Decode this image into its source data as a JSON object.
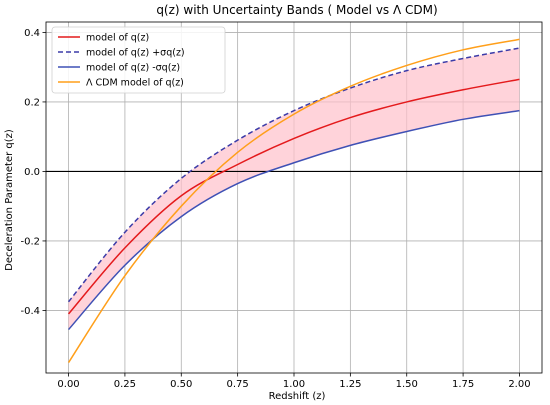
{
  "chart_data": {
    "type": "line",
    "title": "q(z) with Uncertainty Bands ( Model vs Λ CDM)",
    "xlabel": "Redshift (z)",
    "ylabel": "Deceleration Parameter q(z)",
    "xlim": [
      -0.1,
      2.1
    ],
    "ylim": [
      -0.58,
      0.43
    ],
    "xticks": [
      0.0,
      0.25,
      0.5,
      0.75,
      1.0,
      1.25,
      1.5,
      1.75,
      2.0
    ],
    "xtick_labels": [
      "0.00",
      "0.25",
      "0.50",
      "0.75",
      "1.00",
      "1.25",
      "1.50",
      "1.75",
      "2.00"
    ],
    "yticks": [
      -0.4,
      -0.2,
      0.0,
      0.2,
      0.4
    ],
    "ytick_labels": [
      "-0.4",
      "-0.2",
      "0.0",
      "0.2",
      "0.4"
    ],
    "grid": true,
    "legend_position": "upper-left",
    "horizontal_reference_line": 0.0,
    "x": [
      0.0,
      0.25,
      0.5,
      0.75,
      1.0,
      1.25,
      1.5,
      1.75,
      2.0
    ],
    "band": {
      "fill_color": "#ffc0cb",
      "lower_series": "model of q(z) -σq(z)",
      "upper_series": "model of q(z) +σq(z)"
    },
    "series": [
      {
        "name": "model of q(z)",
        "color": "#e41a1c",
        "style": "solid",
        "values": [
          -0.41,
          -0.22,
          -0.07,
          0.02,
          0.095,
          0.155,
          0.2,
          0.235,
          0.265
        ]
      },
      {
        "name": "model of q(z) +σq(z)",
        "color": "#3b3ba8",
        "style": "dashed",
        "values": [
          -0.375,
          -0.175,
          -0.02,
          0.09,
          0.175,
          0.24,
          0.29,
          0.325,
          0.355
        ]
      },
      {
        "name": "model of q(z) -σq(z)",
        "color": "#3f51b5",
        "style": "solid",
        "values": [
          -0.455,
          -0.27,
          -0.13,
          -0.035,
          0.025,
          0.075,
          0.115,
          0.15,
          0.175
        ]
      },
      {
        "name": "Λ CDM model of q(z)",
        "color": "#ff9f1a",
        "style": "solid",
        "values": [
          -0.55,
          -0.3,
          -0.1,
          0.055,
          0.165,
          0.245,
          0.305,
          0.35,
          0.38
        ]
      }
    ]
  }
}
